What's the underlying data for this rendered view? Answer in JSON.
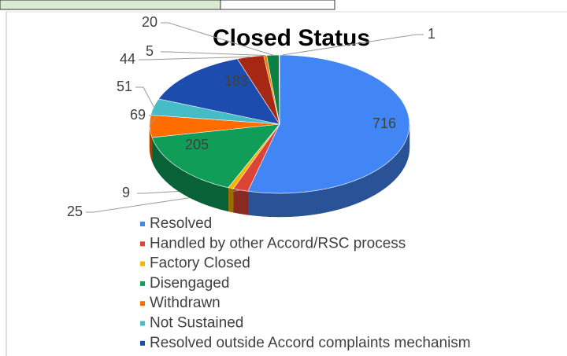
{
  "chart_data": {
    "type": "pie",
    "title": "Closed Status",
    "categories": [
      "Resolved",
      "Handled by other Accord/RSC process",
      "Factory Closed",
      "Disengaged",
      "Withdrawn",
      "Not Sustained",
      "Resolved outside Accord complaints mechanism",
      null,
      null,
      null,
      null
    ],
    "values": [
      716,
      25,
      9,
      205,
      69,
      51,
      183,
      44,
      5,
      20,
      1
    ],
    "colors": [
      "#4285f4",
      "#db4437",
      "#f4b400",
      "#0f9d58",
      "#ff6d00",
      "#46bdc6",
      "#1c4cad",
      "#a52714",
      "#ee8100",
      "#0b8043",
      "#1e9e9e"
    ]
  }
}
